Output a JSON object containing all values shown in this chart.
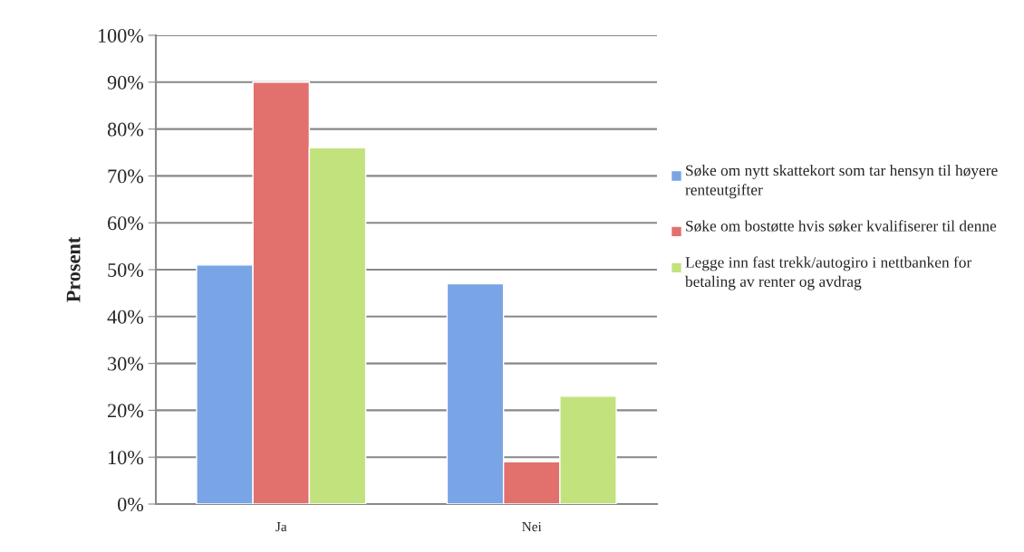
{
  "chart_data": {
    "type": "bar",
    "ylabel": "Prosent",
    "categories": [
      "Ja",
      "Nei"
    ],
    "series": [
      {
        "name": "Søke om nytt skattekort som tar hensyn til høyere renteutgifter",
        "color": "#79a4e6",
        "values": [
          51,
          47
        ]
      },
      {
        "name": "Søke om bostøtte hvis søker kvalifiserer til denne",
        "color": "#e2706d",
        "values": [
          90,
          9
        ]
      },
      {
        "name": "Legge inn fast trekk/autogiro i nettbanken for betaling av renter og avdrag",
        "color": "#c2e27e",
        "values": [
          76,
          23
        ]
      }
    ],
    "ylim": [
      0,
      100
    ],
    "yticks": [
      {
        "value": 0,
        "label": "0%"
      },
      {
        "value": 10,
        "label": "10%"
      },
      {
        "value": 20,
        "label": "20%"
      },
      {
        "value": 30,
        "label": "30%"
      },
      {
        "value": 40,
        "label": "40%"
      },
      {
        "value": 50,
        "label": "50%"
      },
      {
        "value": 60,
        "label": "60%"
      },
      {
        "value": 70,
        "label": "70%"
      },
      {
        "value": 80,
        "label": "80%"
      },
      {
        "value": 90,
        "label": "90%"
      },
      {
        "value": 100,
        "label": "100%"
      }
    ],
    "grid": "y",
    "legend": "right"
  }
}
